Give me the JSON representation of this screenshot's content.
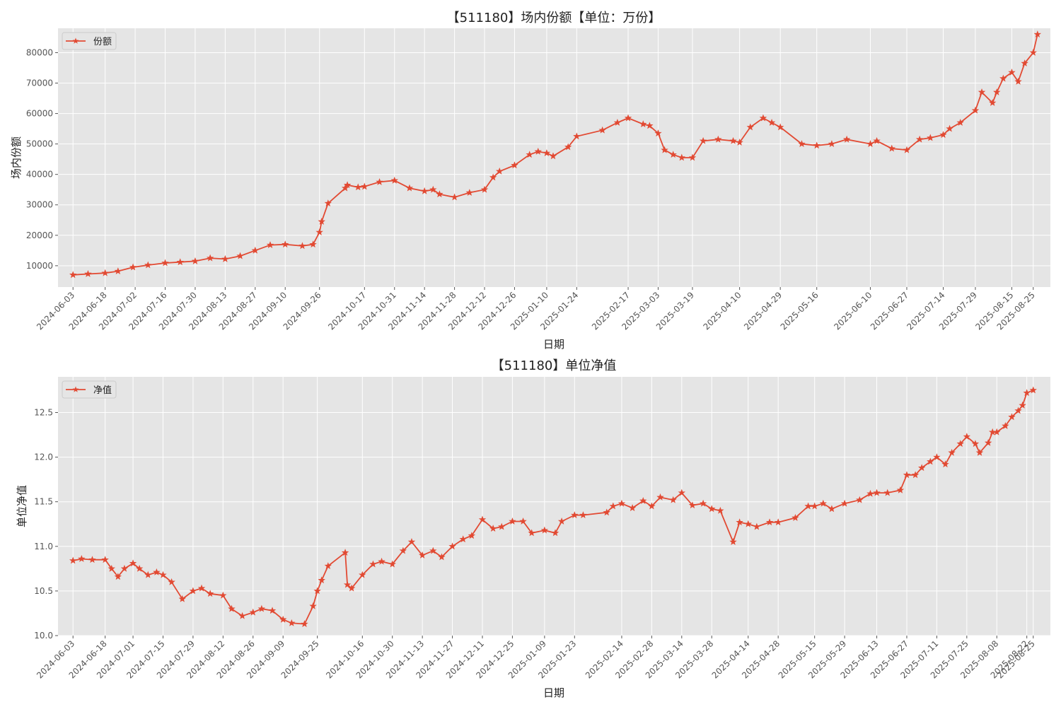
{
  "colors": {
    "line": "#E24A33",
    "plot_bg": "#E5E5E5",
    "grid": "#FFFFFF",
    "text": "#222222",
    "tick": "#555555"
  },
  "chart_data": [
    {
      "type": "line",
      "title": "【511180】场内份额【单位：万份】",
      "xlabel": "日期",
      "ylabel": "场内份额",
      "legend_position": "top-left",
      "grid": true,
      "marker": "star",
      "xlim": [
        "2024-05-27",
        "2025-09-02"
      ],
      "ylim": [
        3000,
        88000
      ],
      "yticks": [
        10000,
        20000,
        30000,
        40000,
        50000,
        60000,
        70000,
        80000
      ],
      "xticks": [
        "2024-06-03",
        "2024-06-18",
        "2024-07-02",
        "2024-07-16",
        "2024-07-30",
        "2024-08-13",
        "2024-08-27",
        "2024-09-10",
        "2024-09-26",
        "2024-10-17",
        "2024-10-31",
        "2024-11-14",
        "2024-11-28",
        "2024-12-12",
        "2024-12-26",
        "2025-01-10",
        "2025-01-24",
        "2025-02-17",
        "2025-03-03",
        "2025-03-19",
        "2025-04-10",
        "2025-04-29",
        "2025-05-16",
        "2025-06-10",
        "2025-06-27",
        "2025-07-14",
        "2025-07-29",
        "2025-08-15",
        "2025-08-25"
      ],
      "series": [
        {
          "name": "份额",
          "points": [
            [
              "2024-06-03",
              7000
            ],
            [
              "2024-06-10",
              7300
            ],
            [
              "2024-06-18",
              7600
            ],
            [
              "2024-06-24",
              8200
            ],
            [
              "2024-07-01",
              9500
            ],
            [
              "2024-07-08",
              10200
            ],
            [
              "2024-07-16",
              10900
            ],
            [
              "2024-07-23",
              11200
            ],
            [
              "2024-07-30",
              11500
            ],
            [
              "2024-08-06",
              12500
            ],
            [
              "2024-08-13",
              12200
            ],
            [
              "2024-08-20",
              13200
            ],
            [
              "2024-08-27",
              15000
            ],
            [
              "2024-09-03",
              16800
            ],
            [
              "2024-09-10",
              17000
            ],
            [
              "2024-09-18",
              16500
            ],
            [
              "2024-09-23",
              17000
            ],
            [
              "2024-09-26",
              21000
            ],
            [
              "2024-09-27",
              24500
            ],
            [
              "2024-09-30",
              30500
            ],
            [
              "2024-10-08",
              35500
            ],
            [
              "2024-10-09",
              36500
            ],
            [
              "2024-10-14",
              35800
            ],
            [
              "2024-10-17",
              36000
            ],
            [
              "2024-10-24",
              37500
            ],
            [
              "2024-10-31",
              38000
            ],
            [
              "2024-11-07",
              35500
            ],
            [
              "2024-11-14",
              34500
            ],
            [
              "2024-11-18",
              35000
            ],
            [
              "2024-11-21",
              33500
            ],
            [
              "2024-11-28",
              32500
            ],
            [
              "2024-12-05",
              34000
            ],
            [
              "2024-12-12",
              35000
            ],
            [
              "2024-12-16",
              39000
            ],
            [
              "2024-12-19",
              41000
            ],
            [
              "2024-12-26",
              43000
            ],
            [
              "2025-01-02",
              46500
            ],
            [
              "2025-01-06",
              47500
            ],
            [
              "2025-01-10",
              47000
            ],
            [
              "2025-01-13",
              46000
            ],
            [
              "2025-01-20",
              49000
            ],
            [
              "2025-01-24",
              52500
            ],
            [
              "2025-02-05",
              54500
            ],
            [
              "2025-02-12",
              57000
            ],
            [
              "2025-02-17",
              58500
            ],
            [
              "2025-02-24",
              56500
            ],
            [
              "2025-02-27",
              56000
            ],
            [
              "2025-03-03",
              53500
            ],
            [
              "2025-03-06",
              48000
            ],
            [
              "2025-03-10",
              46500
            ],
            [
              "2025-03-14",
              45500
            ],
            [
              "2025-03-19",
              45500
            ],
            [
              "2025-03-24",
              51000
            ],
            [
              "2025-03-31",
              51500
            ],
            [
              "2025-04-07",
              51000
            ],
            [
              "2025-04-10",
              50500
            ],
            [
              "2025-04-15",
              55500
            ],
            [
              "2025-04-21",
              58500
            ],
            [
              "2025-04-25",
              57000
            ],
            [
              "2025-04-29",
              55500
            ],
            [
              "2025-05-09",
              50000
            ],
            [
              "2025-05-16",
              49500
            ],
            [
              "2025-05-23",
              50000
            ],
            [
              "2025-05-30",
              51500
            ],
            [
              "2025-06-10",
              50000
            ],
            [
              "2025-06-13",
              51000
            ],
            [
              "2025-06-20",
              48500
            ],
            [
              "2025-06-27",
              48000
            ],
            [
              "2025-07-03",
              51500
            ],
            [
              "2025-07-08",
              52000
            ],
            [
              "2025-07-14",
              53000
            ],
            [
              "2025-07-17",
              55000
            ],
            [
              "2025-07-22",
              57000
            ],
            [
              "2025-07-29",
              61000
            ],
            [
              "2025-08-01",
              67000
            ],
            [
              "2025-08-06",
              63500
            ],
            [
              "2025-08-08",
              67000
            ],
            [
              "2025-08-11",
              71500
            ],
            [
              "2025-08-15",
              73500
            ],
            [
              "2025-08-18",
              70500
            ],
            [
              "2025-08-21",
              76500
            ],
            [
              "2025-08-25",
              80000
            ],
            [
              "2025-08-27",
              86000
            ]
          ]
        }
      ]
    },
    {
      "type": "line",
      "title": "【511180】单位净值",
      "xlabel": "日期",
      "ylabel": "单位净值",
      "legend_position": "top-left",
      "grid": true,
      "marker": "star",
      "xlim": [
        "2024-05-27",
        "2025-09-02"
      ],
      "ylim": [
        10.0,
        12.9
      ],
      "yticks": [
        10.0,
        10.5,
        11.0,
        11.5,
        12.0,
        12.5
      ],
      "xticks": [
        "2024-06-03",
        "2024-06-18",
        "2024-07-01",
        "2024-07-15",
        "2024-07-29",
        "2024-08-12",
        "2024-08-26",
        "2024-09-09",
        "2024-09-25",
        "2024-10-16",
        "2024-10-30",
        "2024-11-13",
        "2024-11-27",
        "2024-12-11",
        "2024-12-25",
        "2025-01-09",
        "2025-01-23",
        "2025-02-14",
        "2025-02-28",
        "2025-03-14",
        "2025-03-28",
        "2025-04-14",
        "2025-04-28",
        "2025-05-15",
        "2025-05-29",
        "2025-06-13",
        "2025-06-27",
        "2025-07-11",
        "2025-07-25",
        "2025-08-08",
        "2025-08-22",
        "2025-08-25"
      ],
      "series": [
        {
          "name": "净值",
          "points": [
            [
              "2024-06-03",
              10.84
            ],
            [
              "2024-06-07",
              10.86
            ],
            [
              "2024-06-12",
              10.85
            ],
            [
              "2024-06-18",
              10.85
            ],
            [
              "2024-06-21",
              10.75
            ],
            [
              "2024-06-24",
              10.66
            ],
            [
              "2024-06-27",
              10.75
            ],
            [
              "2024-07-01",
              10.81
            ],
            [
              "2024-07-04",
              10.75
            ],
            [
              "2024-07-08",
              10.68
            ],
            [
              "2024-07-12",
              10.71
            ],
            [
              "2024-07-15",
              10.68
            ],
            [
              "2024-07-19",
              10.6
            ],
            [
              "2024-07-24",
              10.41
            ],
            [
              "2024-07-29",
              10.5
            ],
            [
              "2024-08-02",
              10.53
            ],
            [
              "2024-08-06",
              10.47
            ],
            [
              "2024-08-12",
              10.45
            ],
            [
              "2024-08-16",
              10.3
            ],
            [
              "2024-08-21",
              10.22
            ],
            [
              "2024-08-26",
              10.26
            ],
            [
              "2024-08-30",
              10.3
            ],
            [
              "2024-09-04",
              10.28
            ],
            [
              "2024-09-09",
              10.18
            ],
            [
              "2024-09-13",
              10.14
            ],
            [
              "2024-09-19",
              10.13
            ],
            [
              "2024-09-23",
              10.33
            ],
            [
              "2024-09-25",
              10.5
            ],
            [
              "2024-09-27",
              10.62
            ],
            [
              "2024-09-30",
              10.78
            ],
            [
              "2024-10-08",
              10.93
            ],
            [
              "2024-10-09",
              10.57
            ],
            [
              "2024-10-11",
              10.53
            ],
            [
              "2024-10-16",
              10.68
            ],
            [
              "2024-10-21",
              10.8
            ],
            [
              "2024-10-25",
              10.83
            ],
            [
              "2024-10-30",
              10.8
            ],
            [
              "2024-11-04",
              10.95
            ],
            [
              "2024-11-08",
              11.05
            ],
            [
              "2024-11-13",
              10.9
            ],
            [
              "2024-11-18",
              10.95
            ],
            [
              "2024-11-22",
              10.88
            ],
            [
              "2024-11-27",
              11.0
            ],
            [
              "2024-12-02",
              11.08
            ],
            [
              "2024-12-06",
              11.12
            ],
            [
              "2024-12-11",
              11.3
            ],
            [
              "2024-12-16",
              11.2
            ],
            [
              "2024-12-20",
              11.22
            ],
            [
              "2024-12-25",
              11.28
            ],
            [
              "2024-12-30",
              11.28
            ],
            [
              "2025-01-03",
              11.15
            ],
            [
              "2025-01-09",
              11.18
            ],
            [
              "2025-01-14",
              11.15
            ],
            [
              "2025-01-17",
              11.28
            ],
            [
              "2025-01-23",
              11.35
            ],
            [
              "2025-01-27",
              11.35
            ],
            [
              "2025-02-07",
              11.38
            ],
            [
              "2025-02-10",
              11.45
            ],
            [
              "2025-02-14",
              11.48
            ],
            [
              "2025-02-19",
              11.43
            ],
            [
              "2025-02-24",
              11.51
            ],
            [
              "2025-02-28",
              11.45
            ],
            [
              "2025-03-04",
              11.55
            ],
            [
              "2025-03-10",
              11.52
            ],
            [
              "2025-03-14",
              11.6
            ],
            [
              "2025-03-19",
              11.46
            ],
            [
              "2025-03-24",
              11.48
            ],
            [
              "2025-03-28",
              11.42
            ],
            [
              "2025-04-01",
              11.4
            ],
            [
              "2025-04-07",
              11.05
            ],
            [
              "2025-04-10",
              11.27
            ],
            [
              "2025-04-14",
              11.25
            ],
            [
              "2025-04-18",
              11.22
            ],
            [
              "2025-04-24",
              11.27
            ],
            [
              "2025-04-28",
              11.27
            ],
            [
              "2025-05-06",
              11.32
            ],
            [
              "2025-05-12",
              11.45
            ],
            [
              "2025-05-15",
              11.45
            ],
            [
              "2025-05-19",
              11.48
            ],
            [
              "2025-05-23",
              11.42
            ],
            [
              "2025-05-29",
              11.48
            ],
            [
              "2025-06-05",
              11.52
            ],
            [
              "2025-06-10",
              11.59
            ],
            [
              "2025-06-13",
              11.6
            ],
            [
              "2025-06-18",
              11.6
            ],
            [
              "2025-06-24",
              11.63
            ],
            [
              "2025-06-27",
              11.8
            ],
            [
              "2025-07-01",
              11.8
            ],
            [
              "2025-07-04",
              11.88
            ],
            [
              "2025-07-08",
              11.95
            ],
            [
              "2025-07-11",
              12.0
            ],
            [
              "2025-07-15",
              11.92
            ],
            [
              "2025-07-18",
              12.05
            ],
            [
              "2025-07-22",
              12.15
            ],
            [
              "2025-07-25",
              12.23
            ],
            [
              "2025-07-29",
              12.15
            ],
            [
              "2025-07-31",
              12.05
            ],
            [
              "2025-08-04",
              12.16
            ],
            [
              "2025-08-06",
              12.28
            ],
            [
              "2025-08-08",
              12.28
            ],
            [
              "2025-08-12",
              12.35
            ],
            [
              "2025-08-15",
              12.45
            ],
            [
              "2025-08-18",
              12.52
            ],
            [
              "2025-08-20",
              12.58
            ],
            [
              "2025-08-22",
              12.72
            ],
            [
              "2025-08-25",
              12.75
            ]
          ]
        }
      ]
    }
  ]
}
